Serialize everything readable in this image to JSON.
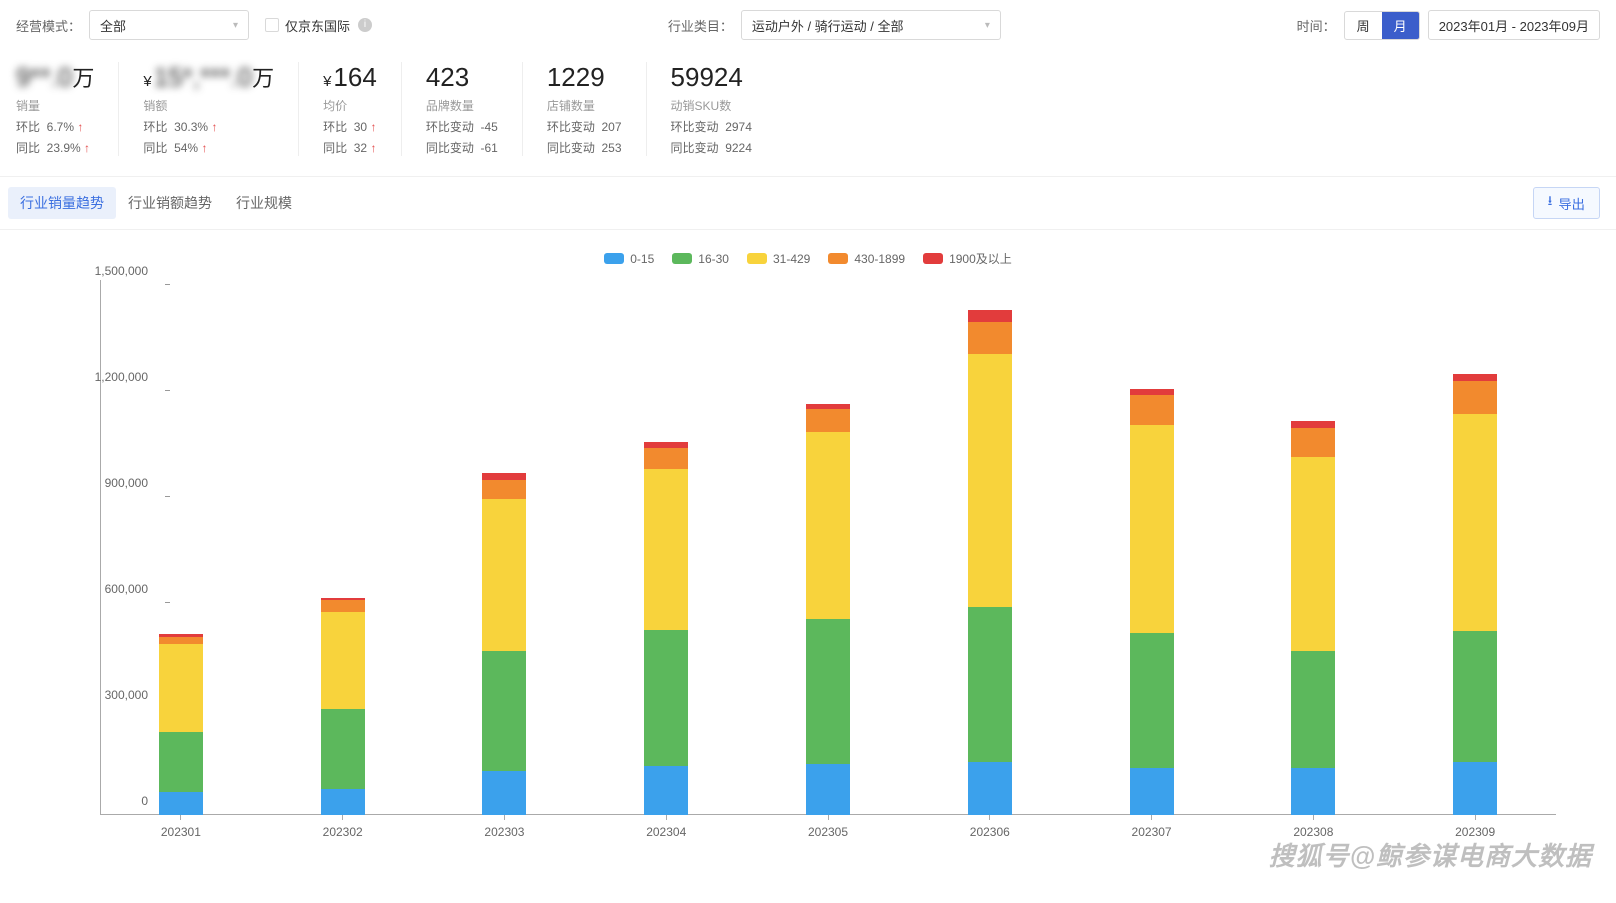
{
  "filters": {
    "mode_label": "经营模式：",
    "mode_value": "全部",
    "jd_intl_label": "仅京东国际",
    "category_label": "行业类目：",
    "category_value": "运动户外 / 骑行运动 / 全部",
    "time_label": "时间：",
    "seg_week": "周",
    "seg_month": "月",
    "date_range": "2023年01月 - 2023年09月"
  },
  "metrics": [
    {
      "id": "sales_qty",
      "value_prefix": "",
      "value_main": "9**.0",
      "value_suffix": "万",
      "blurred": true,
      "label": "销量",
      "rows": [
        {
          "k": "环比",
          "v": "6.7%",
          "arrow": "↑",
          "up": true
        },
        {
          "k": "同比",
          "v": "23.9%",
          "arrow": "↑",
          "up": true
        }
      ]
    },
    {
      "id": "sales_amt",
      "value_prefix": "¥",
      "value_main": "15*,***.0",
      "value_suffix": "万",
      "blurred": true,
      "label": "销额",
      "rows": [
        {
          "k": "环比",
          "v": "30.3%",
          "arrow": "↑",
          "up": true
        },
        {
          "k": "同比",
          "v": "54%",
          "arrow": "↑",
          "up": true
        }
      ]
    },
    {
      "id": "avg_price",
      "value_prefix": "¥",
      "value_main": "164",
      "value_suffix": "",
      "blurred": false,
      "label": "均价",
      "rows": [
        {
          "k": "环比",
          "v": "30",
          "arrow": "↑",
          "up": true
        },
        {
          "k": "同比",
          "v": "32",
          "arrow": "↑",
          "up": true
        }
      ]
    },
    {
      "id": "brand_count",
      "value_prefix": "",
      "value_main": "423",
      "value_suffix": "",
      "blurred": false,
      "label": "品牌数量",
      "rows": [
        {
          "k": "环比变动",
          "v": "-45",
          "arrow": "",
          "up": false
        },
        {
          "k": "同比变动",
          "v": "-61",
          "arrow": "",
          "up": false
        }
      ]
    },
    {
      "id": "shop_count",
      "value_prefix": "",
      "value_main": "1229",
      "value_suffix": "",
      "blurred": false,
      "label": "店铺数量",
      "rows": [
        {
          "k": "环比变动",
          "v": "207",
          "arrow": "",
          "up": false
        },
        {
          "k": "同比变动",
          "v": "253",
          "arrow": "",
          "up": false
        }
      ]
    },
    {
      "id": "sku_count",
      "value_prefix": "",
      "value_main": "59924",
      "value_suffix": "",
      "blurred": false,
      "label": "动销SKU数",
      "rows": [
        {
          "k": "环比变动",
          "v": "2974",
          "arrow": "",
          "up": false
        },
        {
          "k": "同比变动",
          "v": "9224",
          "arrow": "",
          "up": false
        }
      ]
    }
  ],
  "tabs": {
    "items": [
      "行业销量趋势",
      "行业销额趋势",
      "行业规模"
    ],
    "active": 0,
    "export_label": "导出"
  },
  "chart": {
    "type": "stacked-bar",
    "y_max": 1500000,
    "y_ticks": [
      0,
      300000,
      600000,
      900000,
      1200000,
      1500000
    ],
    "y_tick_labels": [
      "0",
      "300,000",
      "600,000",
      "900,000",
      "1,200,000",
      "1,500,000"
    ],
    "categories": [
      "202301",
      "202302",
      "202303",
      "202304",
      "202305",
      "202306",
      "202307",
      "202308",
      "202309"
    ],
    "series": [
      {
        "name": "0-15",
        "color": "#3ba1ec"
      },
      {
        "name": "16-30",
        "color": "#5cb85c"
      },
      {
        "name": "31-429",
        "color": "#f8d33c"
      },
      {
        "name": "430-1899",
        "color": "#f28a2e"
      },
      {
        "name": "1900及以上",
        "color": "#e23c3c"
      }
    ],
    "data": [
      [
        65000,
        170000,
        250000,
        20000,
        7000
      ],
      [
        75000,
        225000,
        275000,
        35000,
        5000
      ],
      [
        125000,
        340000,
        430000,
        55000,
        18000
      ],
      [
        140000,
        385000,
        455000,
        60000,
        15000
      ],
      [
        145000,
        410000,
        530000,
        65000,
        15000
      ],
      [
        150000,
        440000,
        715000,
        90000,
        35000
      ],
      [
        135000,
        380000,
        590000,
        85000,
        15000
      ],
      [
        135000,
        330000,
        550000,
        80000,
        20000
      ],
      [
        150000,
        370000,
        615000,
        95000,
        20000
      ]
    ]
  },
  "watermark": "搜狐号@鲸参谋电商大数据"
}
